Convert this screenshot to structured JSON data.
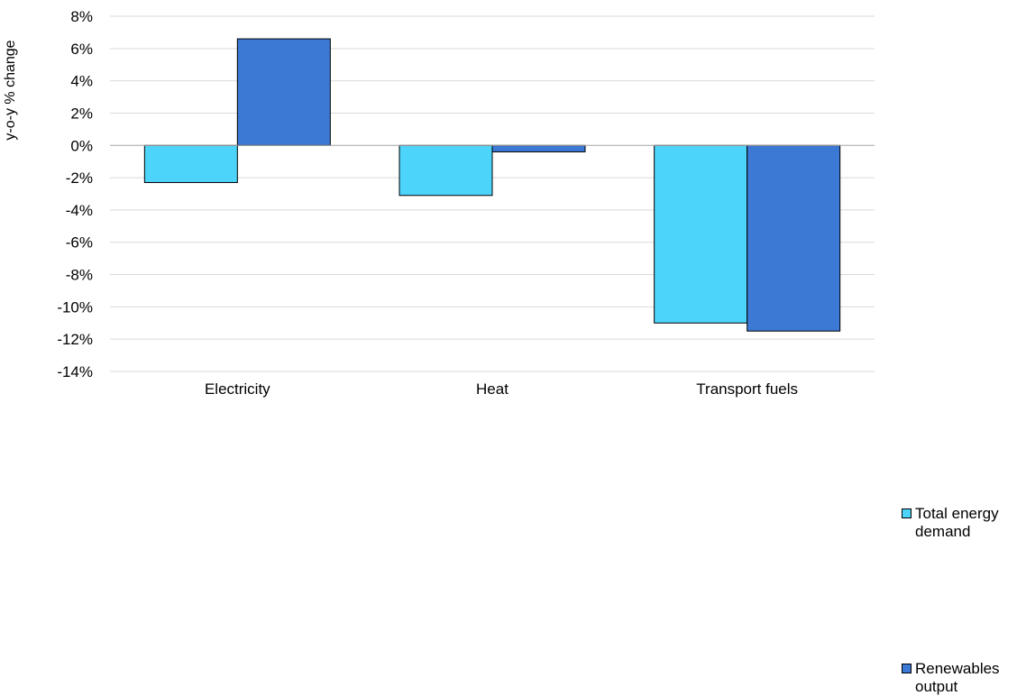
{
  "chart_data": {
    "type": "bar",
    "categories": [
      "Electricity",
      "Heat",
      "Transport fuels"
    ],
    "series": [
      {
        "name": "Total energy demand",
        "color": "#4dd4fa",
        "values": [
          -2.3,
          -3.1,
          -11.0
        ]
      },
      {
        "name": "Renewables output",
        "color": "#3b79d4",
        "values": [
          6.6,
          -0.4,
          -11.5
        ]
      }
    ],
    "ylabel": "y-o-y % change",
    "xlabel": "",
    "ylim": [
      -14,
      8
    ],
    "yticks": [
      8,
      6,
      4,
      2,
      0,
      -2,
      -4,
      -6,
      -8,
      -10,
      -12,
      -14
    ],
    "ytick_labels": [
      "8%",
      "6%",
      "4%",
      "2%",
      "0%",
      "-2%",
      "-4%",
      "-6%",
      "-8%",
      "-10%",
      "-12%",
      "-14%"
    ],
    "grid": true,
    "legend_position": "right"
  }
}
